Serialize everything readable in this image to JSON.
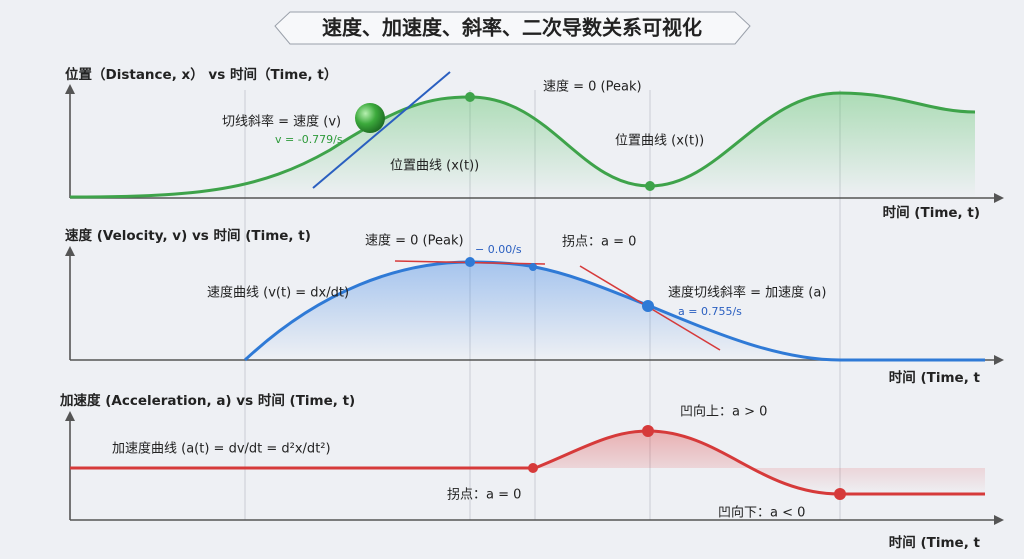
{
  "title": "速度、加速度、斜率、二次导数关系可视化",
  "panels": [
    {
      "y_label": "位置（Distance, x） vs 时间（Time, t）",
      "x_label": "时间 (Time, t)",
      "annotations": [
        "切线斜率 = 速度 (v)",
        "v = -0.779/s",
        "位置曲线 (x(t))",
        "速度 = 0 (Peak)",
        "位置曲线 (x(t))"
      ]
    },
    {
      "y_label": "速度 (Velocity, v) vs 时间 (Time, t)",
      "x_label": "时间 (Time, t",
      "annotations": [
        "速度 = 0 (Peak)",
        "− 0.00/s",
        "拐点：a = 0",
        "速度曲线 (v(t) = dx/dt)",
        "速度切线斜率 = 加速度 (a)",
        "a = 0.755/s"
      ]
    },
    {
      "y_label": "加速度 (Acceleration, a) vs 时间 (Time, t)",
      "x_label": "时间 (Time, t",
      "annotations": [
        "加速度曲线 (a(t) = dv/dt = d²x/dt²)",
        "拐点：a = 0",
        "凹向上：a > 0",
        "凹向下：a < 0"
      ]
    }
  ]
}
